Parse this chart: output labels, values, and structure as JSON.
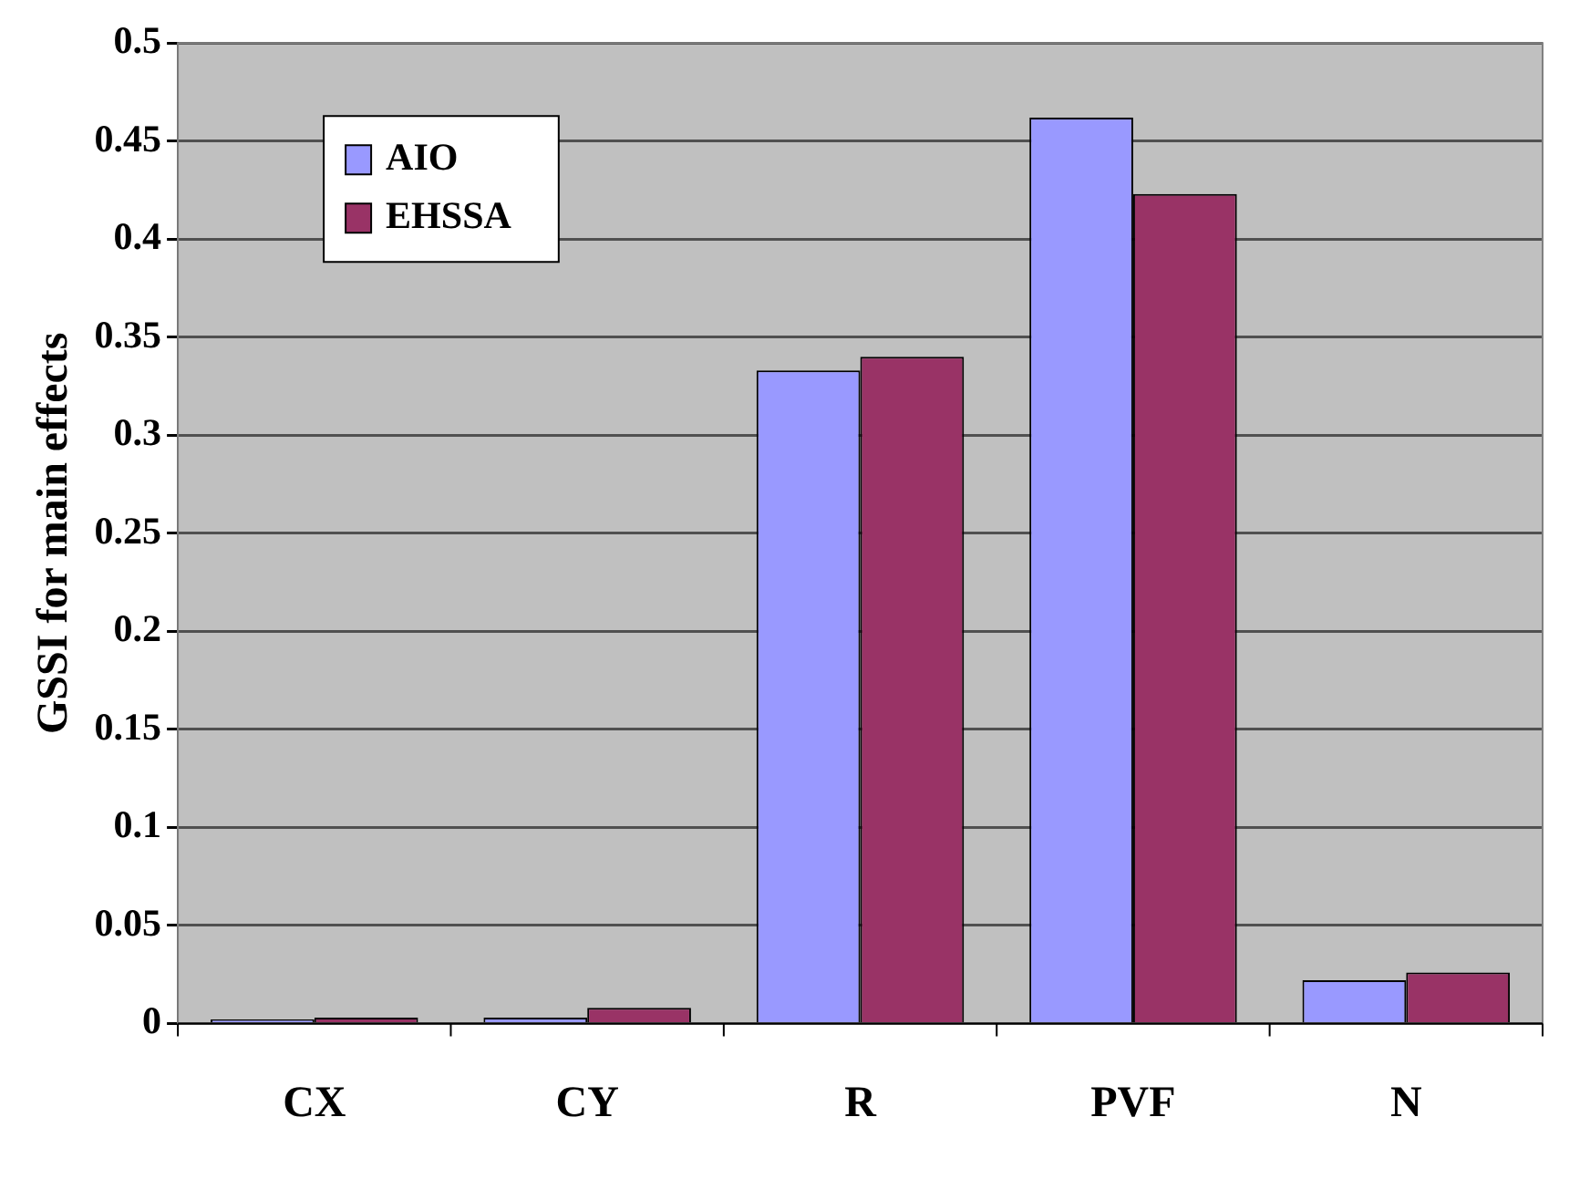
{
  "chart_data": {
    "type": "bar",
    "ylabel": "GSSI for main effects",
    "categories": [
      "CX",
      "CY",
      "R",
      "PVF",
      "N"
    ],
    "series": [
      {
        "name": "AIO",
        "color": "#9999ff",
        "values": [
          0.002,
          0.003,
          0.333,
          0.462,
          0.022
        ]
      },
      {
        "name": "EHSSA",
        "color": "#993366",
        "values": [
          0.003,
          0.008,
          0.34,
          0.423,
          0.026
        ]
      }
    ],
    "ylim": [
      0,
      0.5
    ],
    "yticks": [
      0,
      0.05,
      0.1,
      0.15,
      0.2,
      0.25,
      0.3,
      0.35,
      0.4,
      0.45,
      0.5
    ],
    "grid": "y",
    "legend": "top left"
  }
}
